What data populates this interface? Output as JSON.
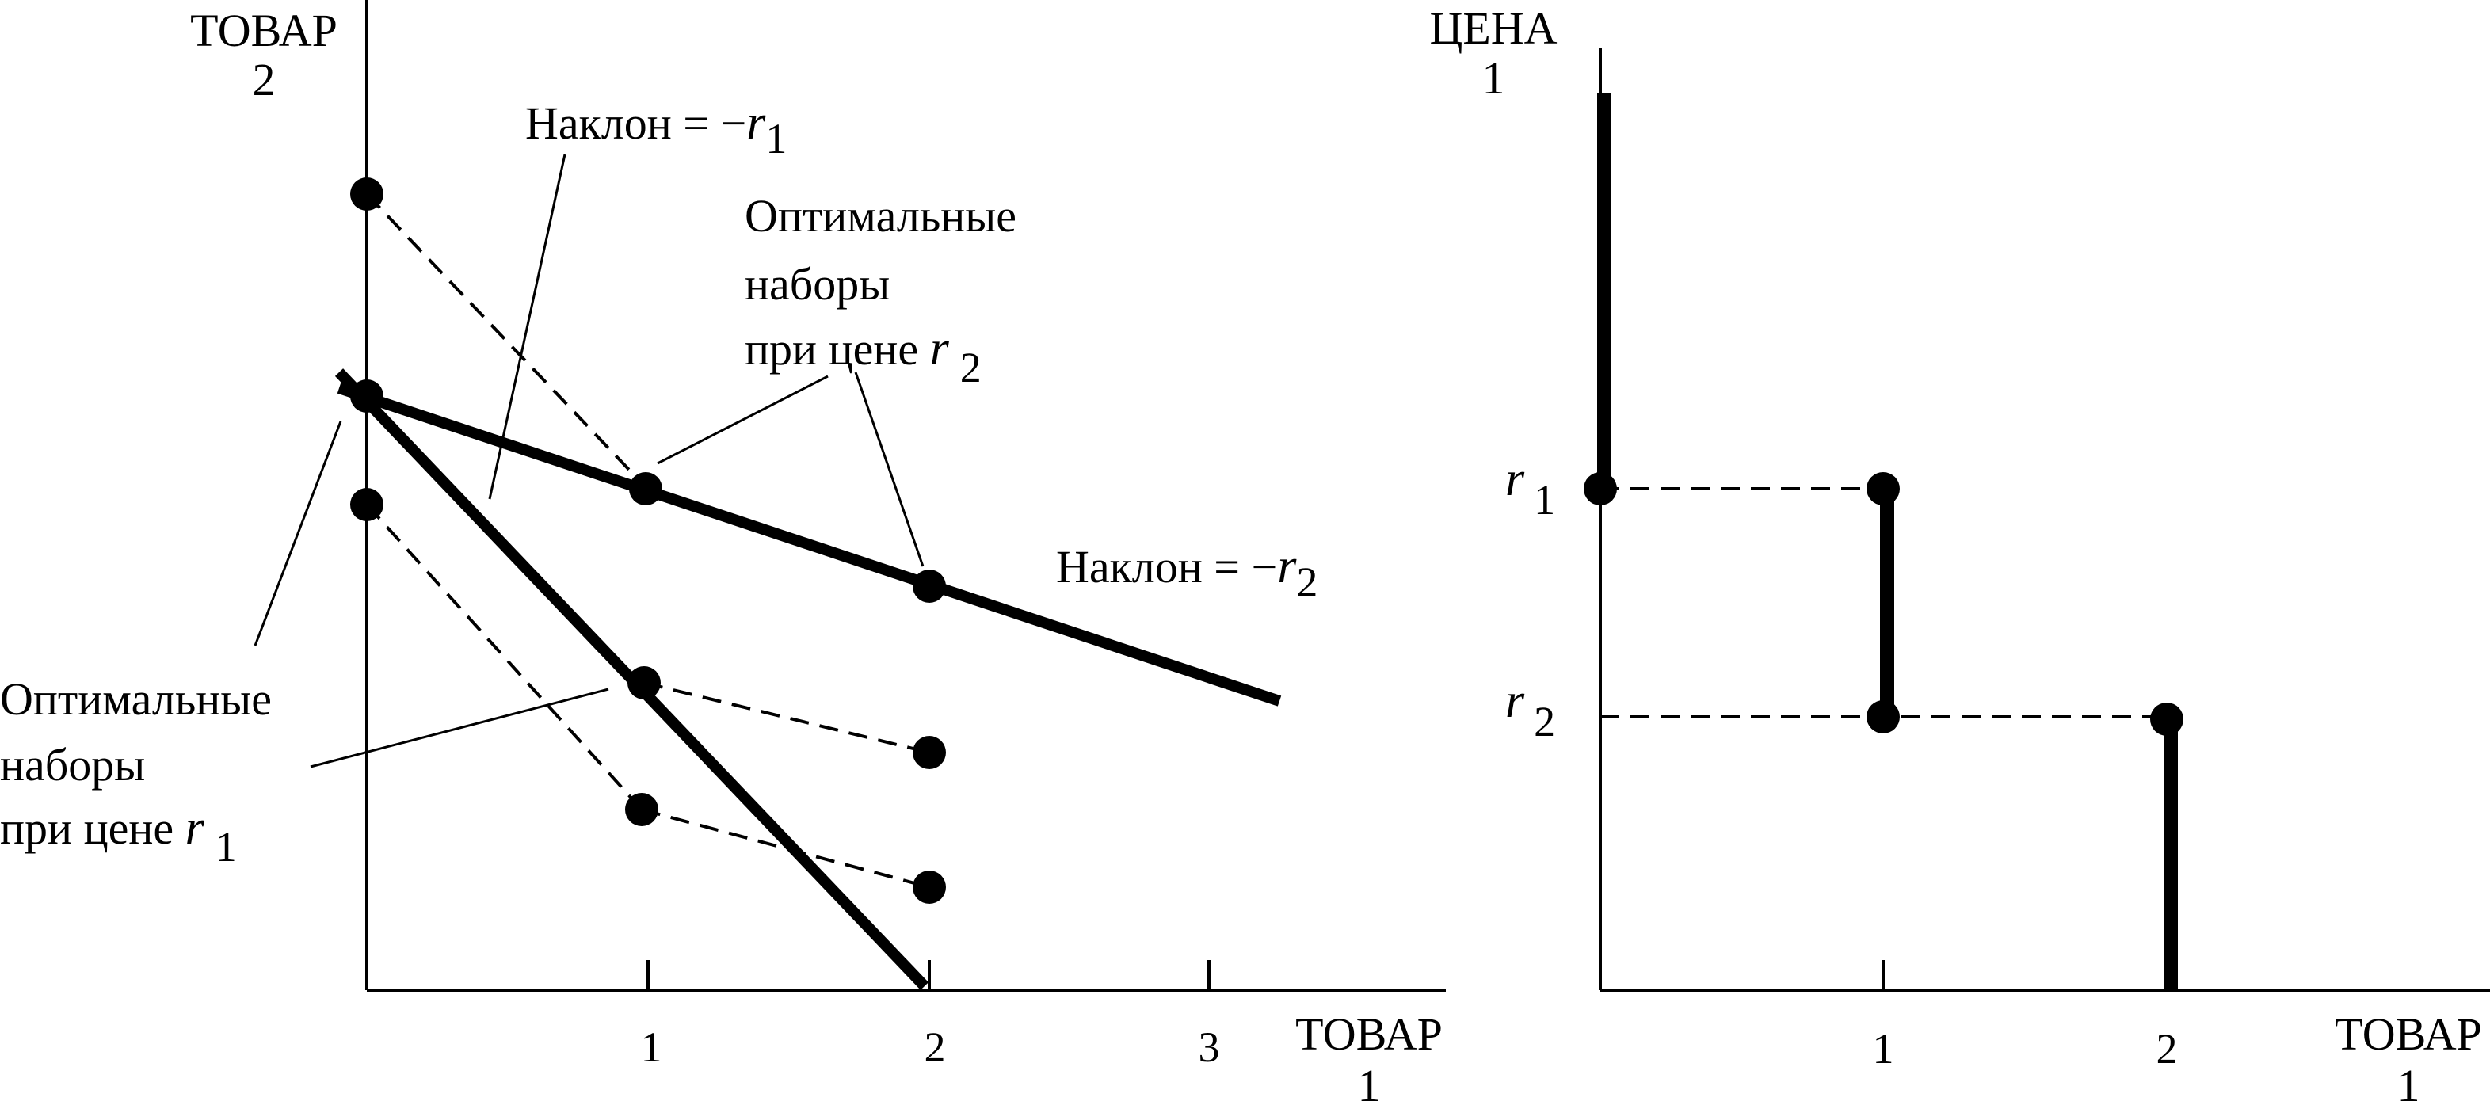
{
  "left_panel": {
    "y_axis_label": {
      "line1": "ТОВАР",
      "line2": "2"
    },
    "x_axis_label": {
      "line1": "ТОВАР",
      "line2": "1"
    },
    "x_ticks": [
      "1",
      "2",
      "3"
    ],
    "slope_r1": {
      "text": "Наклон = −",
      "symbol": "r",
      "sub": "1"
    },
    "slope_r2": {
      "text": "Наклон = −",
      "symbol": "r",
      "sub": "2"
    },
    "optimal_r2": {
      "line1": "Оптимальные",
      "line2": "наборы",
      "line3": "при цене ",
      "symbol": "r",
      "sub": "2"
    },
    "optimal_r1": {
      "line1": "Оптимальные",
      "line2": "наборы",
      "line3": "при цене ",
      "symbol": "r",
      "sub": "1"
    }
  },
  "right_panel": {
    "y_axis_label": {
      "line1": "ЦЕНА",
      "line2": "1"
    },
    "x_axis_label": {
      "line1": "ТОВАР",
      "line2": "1"
    },
    "x_ticks": [
      "1",
      "2"
    ],
    "r1_label": {
      "symbol": "r",
      "sub": "1"
    },
    "r2_label": {
      "symbol": "r",
      "sub": "2"
    }
  }
}
